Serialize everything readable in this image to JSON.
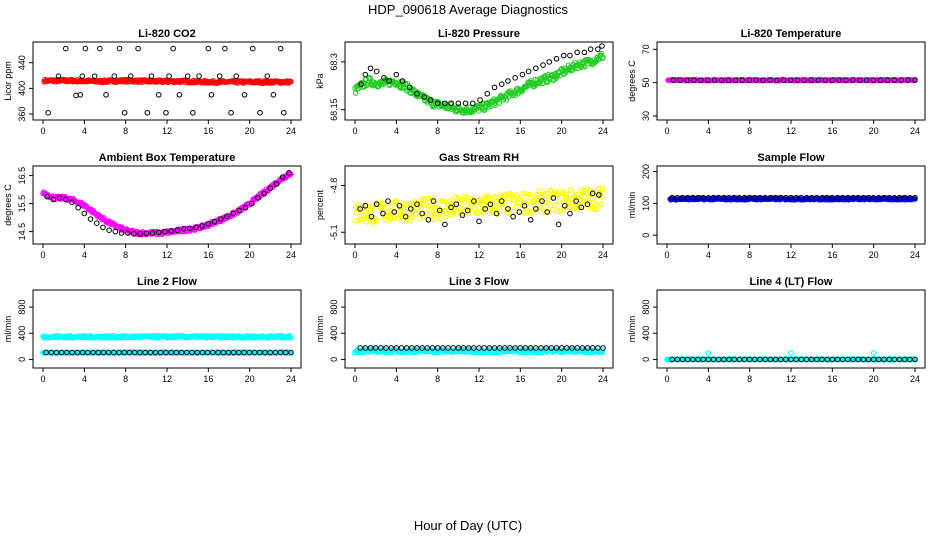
{
  "figure": {
    "title": "HDP_090618  Average Diagnostics",
    "xlabel": "Hour of Day (UTC)"
  },
  "chart_data": [
    {
      "type": "scatter",
      "title": "Li-820 CO2",
      "ylabel": "Licor ppm",
      "xlim": [
        0,
        24
      ],
      "xticks": [
        0,
        4,
        8,
        12,
        16,
        20,
        24
      ],
      "ylim": [
        357,
        466
      ],
      "yticks": [
        360,
        400,
        440
      ],
      "series": [
        {
          "name": "dense",
          "color": "#ff0000",
          "shape": "band",
          "x_from": 0.1,
          "x_to": 24,
          "y": [
            412,
            412,
            411,
            412,
            411,
            411,
            410,
            410,
            410,
            410
          ],
          "spread": 2
        },
        {
          "name": "averages",
          "color": "#000000",
          "shape": "open",
          "x": [
            0.5,
            1.5,
            2.2,
            3.2,
            3.6,
            3.8,
            4.1,
            5,
            5.5,
            6.1,
            6.9,
            7.4,
            7.9,
            8.5,
            9.2,
            10.1,
            10.5,
            11.2,
            11.9,
            12.2,
            12.6,
            13.2,
            14,
            14.5,
            15.1,
            16,
            16.3,
            17.1,
            17.6,
            18.2,
            18.7,
            19.5,
            20.3,
            21,
            21.7,
            22.3,
            23,
            23.3
          ],
          "y": [
            362,
            419,
            462,
            389,
            390,
            419,
            462,
            419,
            462,
            390,
            419,
            462,
            362,
            419,
            462,
            362,
            419,
            390,
            362,
            419,
            462,
            390,
            419,
            362,
            419,
            462,
            390,
            419,
            462,
            362,
            419,
            390,
            462,
            362,
            419,
            390,
            462,
            362
          ]
        }
      ]
    },
    {
      "type": "scatter",
      "title": "Li-820 Pressure",
      "ylabel": "kPa",
      "xlim": [
        0,
        24
      ],
      "xticks": [
        0,
        4,
        8,
        12,
        16,
        20,
        24
      ],
      "ylim": [
        68.13,
        68.35
      ],
      "yticks": [
        68.15,
        68.3
      ],
      "series": [
        {
          "name": "dense",
          "color": "#22cc22",
          "shape": "band",
          "x_from": 0,
          "x_to": 24,
          "y": [
            68.21,
            68.24,
            68.23,
            68.24,
            68.22,
            68.19,
            68.17,
            68.16,
            68.15,
            68.15,
            68.16,
            68.18,
            68.2,
            68.22,
            68.24,
            68.25,
            68.27,
            68.29,
            68.3,
            68.32
          ],
          "spread": 0.012
        },
        {
          "name": "averages",
          "color": "#000000",
          "shape": "open",
          "x": [
            0.6,
            1.0,
            1.5,
            2.1,
            2.8,
            3.3,
            4.0,
            4.6,
            5.3,
            6.0,
            6.7,
            7.3,
            8.0,
            8.7,
            9.3,
            10.0,
            10.7,
            11.4,
            12.1,
            12.8,
            13.5,
            14.2,
            14.8,
            15.5,
            16.2,
            16.8,
            17.5,
            18.2,
            18.8,
            19.5,
            20.2,
            20.8,
            21.5,
            22.2,
            22.8,
            23.5,
            23.9
          ],
          "y": [
            68.23,
            68.26,
            68.28,
            68.27,
            68.25,
            68.24,
            68.26,
            68.24,
            68.22,
            68.2,
            68.19,
            68.18,
            68.17,
            68.17,
            68.17,
            68.17,
            68.17,
            68.17,
            68.18,
            68.2,
            68.22,
            68.23,
            68.24,
            68.25,
            68.26,
            68.27,
            68.28,
            68.29,
            68.3,
            68.31,
            68.32,
            68.32,
            68.33,
            68.33,
            68.34,
            68.34,
            68.35
          ]
        }
      ]
    },
    {
      "type": "scatter",
      "title": "Li-820 Temperature",
      "ylabel": "degrees C",
      "xlim": [
        0,
        24
      ],
      "xticks": [
        0,
        4,
        8,
        12,
        16,
        20,
        24
      ],
      "ylim": [
        30,
        72
      ],
      "yticks": [
        30,
        50,
        70
      ],
      "series": [
        {
          "name": "dense",
          "color": "#ff00ff",
          "shape": "band",
          "x_from": 0.1,
          "x_to": 24,
          "y": [
            51.5,
            51.5
          ],
          "spread": 0.3
        },
        {
          "name": "averages",
          "color": "#000000",
          "shape": "open-row",
          "x_from": 0.6,
          "x_to": 24,
          "count": 36,
          "y": 51.5
        }
      ]
    },
    {
      "type": "scatter",
      "title": "Ambient Box Temperature",
      "ylabel": "degrees C",
      "xlim": [
        0,
        24
      ],
      "xticks": [
        0,
        4,
        8,
        12,
        16,
        20,
        24
      ],
      "ylim": [
        14.2,
        16.7
      ],
      "yticks": [
        14.5,
        15.5,
        16.5
      ],
      "series": [
        {
          "name": "dense",
          "color": "#ff00ff",
          "shape": "band",
          "x_from": 0,
          "x_to": 24,
          "y": [
            15.9,
            15.7,
            15.7,
            15.6,
            15.4,
            15.1,
            14.85,
            14.65,
            14.5,
            14.45,
            14.45,
            14.45,
            14.5,
            14.55,
            14.6,
            14.7,
            14.85,
            15.0,
            15.2,
            15.45,
            15.75,
            16.05,
            16.35,
            16.6
          ],
          "spread": 0.06
        },
        {
          "name": "averages",
          "color": "#000000",
          "shape": "open",
          "x": [
            0.4,
            1.0,
            1.6,
            2.2,
            2.8,
            3.4,
            4.0,
            4.6,
            5.2,
            5.8,
            6.4,
            7.0,
            7.6,
            8.2,
            8.8,
            9.4,
            10.0,
            10.6,
            11.2,
            11.8,
            12.4,
            13.0,
            13.6,
            14.2,
            14.8,
            15.4,
            16.0,
            16.6,
            17.2,
            17.8,
            18.4,
            19.0,
            19.6,
            20.2,
            20.8,
            21.4,
            22.0,
            22.6,
            23.2,
            23.8
          ],
          "y": [
            15.75,
            15.65,
            15.7,
            15.65,
            15.55,
            15.35,
            15.15,
            14.95,
            14.8,
            14.65,
            14.55,
            14.5,
            14.45,
            14.45,
            14.42,
            14.42,
            14.43,
            14.45,
            14.47,
            14.5,
            14.52,
            14.55,
            14.6,
            14.62,
            14.65,
            14.7,
            14.78,
            14.85,
            14.95,
            15.05,
            15.15,
            15.25,
            15.35,
            15.5,
            15.7,
            15.85,
            16.05,
            16.2,
            16.45,
            16.6
          ]
        }
      ]
    },
    {
      "type": "scatter",
      "title": "Gas Stream RH",
      "ylabel": "percent",
      "xlim": [
        0,
        24
      ],
      "xticks": [
        0,
        4,
        8,
        12,
        16,
        20,
        24
      ],
      "ylim": [
        -5.15,
        -4.7
      ],
      "yticks": [
        -5.1,
        -4.8
      ],
      "series": [
        {
          "name": "dense",
          "color": "#ffff00",
          "shape": "band",
          "x_from": 0,
          "x_to": 24,
          "y": [
            -4.98,
            -4.96,
            -4.94,
            -4.92,
            -4.9,
            -4.88
          ],
          "spread": 0.07
        },
        {
          "name": "averages",
          "color": "#000000",
          "shape": "open",
          "x": [
            0.5,
            1.0,
            1.6,
            2.1,
            2.7,
            3.2,
            3.8,
            4.3,
            4.9,
            5.4,
            6.0,
            6.5,
            7.1,
            7.6,
            8.2,
            8.7,
            9.3,
            9.8,
            10.4,
            10.9,
            11.5,
            12.0,
            12.6,
            13.1,
            13.7,
            14.2,
            14.8,
            15.3,
            15.9,
            16.4,
            17.0,
            17.5,
            18.1,
            18.6,
            19.2,
            19.7,
            20.3,
            20.8,
            21.4,
            21.9,
            22.5,
            23.0,
            23.6
          ],
          "y": [
            -4.95,
            -4.93,
            -5.0,
            -4.92,
            -4.98,
            -4.9,
            -4.97,
            -4.93,
            -5.0,
            -4.95,
            -4.92,
            -4.98,
            -5.02,
            -4.9,
            -4.96,
            -5.05,
            -4.94,
            -4.92,
            -4.99,
            -4.96,
            -4.9,
            -5.03,
            -4.95,
            -4.92,
            -4.98,
            -4.9,
            -4.95,
            -5.0,
            -4.97,
            -4.93,
            -5.02,
            -4.95,
            -4.9,
            -4.97,
            -4.88,
            -5.05,
            -4.93,
            -4.98,
            -4.9,
            -4.94,
            -4.92,
            -4.85,
            -4.86
          ]
        }
      ]
    },
    {
      "type": "scatter",
      "title": "Sample Flow",
      "ylabel": "ml/min",
      "xlim": [
        0,
        24
      ],
      "xticks": [
        0,
        4,
        8,
        12,
        16,
        20,
        24
      ],
      "ylim": [
        -15,
        205
      ],
      "yticks": [
        0,
        100,
        200
      ],
      "series": [
        {
          "name": "dense",
          "color": "#0000ff",
          "shape": "band",
          "x_from": 0.3,
          "x_to": 24,
          "y": [
            114,
            114
          ],
          "spread": 3
        },
        {
          "name": "averages",
          "color": "#000000",
          "shape": "open-row",
          "x_from": 0.5,
          "x_to": 24,
          "count": 48,
          "y": 118
        }
      ]
    },
    {
      "type": "scatter",
      "title": "Line 2 Flow",
      "ylabel": "ml/min",
      "xlim": [
        0,
        24
      ],
      "xticks": [
        0,
        4,
        8,
        12,
        16,
        20,
        24
      ],
      "ylim": [
        -70,
        1000
      ],
      "yticks": [
        0,
        400,
        800
      ],
      "series": [
        {
          "name": "dense-upper",
          "color": "#00ffff",
          "shape": "band",
          "x_from": 0,
          "x_to": 24,
          "y": [
            345,
            345
          ],
          "spread": 18
        },
        {
          "name": "dense-lower",
          "color": "#00ffff",
          "shape": "band",
          "x_from": 0,
          "x_to": 24,
          "y": [
            105,
            105
          ],
          "spread": 8
        },
        {
          "name": "averages",
          "color": "#000000",
          "shape": "open-row",
          "x_from": 0.3,
          "x_to": 24,
          "count": 48,
          "y": 105
        }
      ]
    },
    {
      "type": "scatter",
      "title": "Line 3 Flow",
      "ylabel": "ml/min",
      "xlim": [
        0,
        24
      ],
      "xticks": [
        0,
        4,
        8,
        12,
        16,
        20,
        24
      ],
      "ylim": [
        -70,
        1000
      ],
      "yticks": [
        0,
        400,
        800
      ],
      "series": [
        {
          "name": "dense",
          "color": "#00ffff",
          "shape": "band",
          "x_from": 0,
          "x_to": 24,
          "y": [
            130,
            130
          ],
          "spread": 25
        },
        {
          "name": "averages",
          "color": "#000000",
          "shape": "open-row",
          "x_from": 0.5,
          "x_to": 24,
          "count": 48,
          "y": 175
        }
      ]
    },
    {
      "type": "scatter",
      "title": "Line 4 (LT) Flow",
      "ylabel": "ml/min",
      "xlim": [
        0,
        24
      ],
      "xticks": [
        0,
        4,
        8,
        12,
        16,
        20,
        24
      ],
      "ylim": [
        -70,
        1000
      ],
      "yticks": [
        0,
        400,
        800
      ],
      "series": [
        {
          "name": "dense",
          "color": "#00ffff",
          "shape": "band",
          "x_from": 0,
          "x_to": 24,
          "y": [
            0,
            0
          ],
          "spread": 6
        },
        {
          "name": "spikes",
          "color": "#00ffff",
          "shape": "open",
          "x": [
            4.0,
            12.0,
            20.0
          ],
          "y": [
            100,
            100,
            100
          ]
        },
        {
          "name": "averages",
          "color": "#000000",
          "shape": "open-row",
          "x_from": 0.5,
          "x_to": 24,
          "count": 48,
          "y": 0
        }
      ]
    }
  ]
}
